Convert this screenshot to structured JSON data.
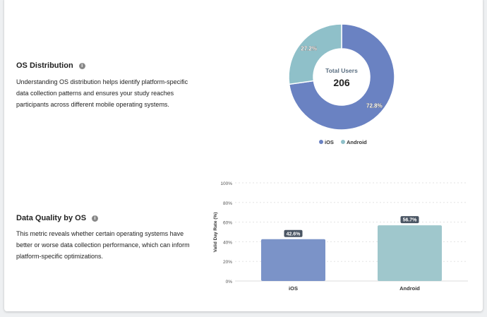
{
  "os_distribution": {
    "title": "OS Distribution",
    "description": "Understanding OS distribution helps identify platform-specific data collection patterns and ensures your study reaches participants across different mobile operating systems.",
    "center_label": "Total Users",
    "center_value": "206"
  },
  "data_quality": {
    "title": "Data Quality by OS",
    "description": "This metric reveals whether certain operating systems have better or worse data collection performance, which can inform platform-specific optimizations."
  },
  "chart_data": [
    {
      "type": "pie",
      "variant": "donut",
      "categories": [
        "iOS",
        "Android"
      ],
      "values": [
        72.8,
        27.2
      ],
      "labels": [
        "72.8%",
        "27.2%"
      ],
      "colors": [
        "#6a82c2",
        "#8fc0c9"
      ],
      "legend": "bottom"
    },
    {
      "type": "bar",
      "categories": [
        "iOS",
        "Android"
      ],
      "values": [
        42.6,
        56.7
      ],
      "labels": [
        "42.6%",
        "56.7%"
      ],
      "colors": [
        "#7b93c8",
        "#9fc7cc"
      ],
      "ylabel": "Valid Day Rate (%)",
      "ylim": [
        0,
        100
      ],
      "yticks": [
        "0%",
        "20%",
        "40%",
        "60%",
        "80%",
        "100%"
      ],
      "grid": true
    }
  ]
}
